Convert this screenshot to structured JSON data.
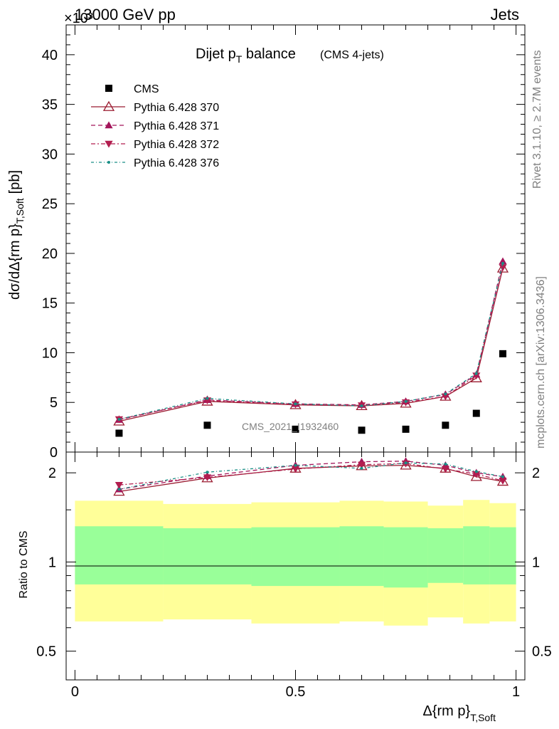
{
  "header": {
    "energy": "13000 GeV pp",
    "category": "Jets",
    "exponent": "×10³",
    "side_rivet": "Rivet 3.1.10, ≥ 2.7M events",
    "side_site": "mcplots.cern.ch [arXiv:1306.3436]"
  },
  "main_panel": {
    "title_main": "Dijet p",
    "title_sub": "T",
    "title_rest": " balance",
    "title_note": "(CMS 4-jets)",
    "ylabel": "dσ/dΔ{rm p}",
    "ylabel_sub": "T,Soft",
    "ylabel_unit": "[pb]",
    "watermark": "CMS_2021_I1932460"
  },
  "ratio_panel": {
    "ylabel": "Ratio to CMS"
  },
  "xaxis": {
    "label": "Δ{rm p}",
    "label_sub": "T,Soft"
  },
  "colors": {
    "data": "#000000",
    "s370": "#9b1c31",
    "s371": "#a3155a",
    "s372": "#b21e4f",
    "s376": "#1a8f86",
    "band_inner": "#99ff99",
    "band_outer": "#ffff99"
  },
  "chart_data": [
    {
      "type": "scatter",
      "xlim": [
        -0.02,
        1.02
      ],
      "ylim": [
        0,
        43
      ],
      "yscale": "linear",
      "yunit_multiplier": 1000,
      "yticks": [
        0,
        5,
        10,
        15,
        20,
        25,
        30,
        35,
        40
      ],
      "xticks": [
        0,
        0.5,
        1
      ],
      "x": [
        0.1,
        0.3,
        0.5,
        0.65,
        0.75,
        0.84,
        0.91,
        0.97
      ],
      "series": [
        {
          "name": "CMS",
          "style": "data",
          "values": [
            1.9,
            2.7,
            2.3,
            2.2,
            2.3,
            2.7,
            3.9,
            9.9
          ]
        },
        {
          "name": "Pythia 6.428 370",
          "style": "s370",
          "values": [
            3.1,
            5.1,
            4.75,
            4.65,
            4.9,
            5.6,
            7.45,
            18.5
          ]
        },
        {
          "name": "Pythia 6.428 371",
          "style": "s371",
          "values": [
            3.25,
            5.25,
            4.85,
            4.75,
            5.1,
            5.8,
            7.8,
            19.2
          ]
        },
        {
          "name": "Pythia 6.428 372",
          "style": "s372",
          "values": [
            3.3,
            5.2,
            4.8,
            4.7,
            5.0,
            5.6,
            7.7,
            18.6
          ]
        },
        {
          "name": "Pythia 6.428 376",
          "style": "s376",
          "values": [
            3.3,
            5.4,
            4.85,
            4.65,
            5.1,
            5.85,
            7.9,
            19.0
          ]
        }
      ]
    },
    {
      "type": "line",
      "ylim": [
        0.4,
        2.35
      ],
      "yscale": "log",
      "yticks": [
        0.5,
        1,
        2
      ],
      "xticks": [
        0,
        0.5,
        1
      ],
      "x": [
        0.1,
        0.3,
        0.5,
        0.65,
        0.75,
        0.84,
        0.91,
        0.97
      ],
      "bin_edges": [
        0,
        0.2,
        0.4,
        0.6,
        0.7,
        0.8,
        0.88,
        0.94,
        1.0
      ],
      "band_inner": [
        [
          0.84,
          1.32
        ],
        [
          0.84,
          1.3
        ],
        [
          0.83,
          1.31
        ],
        [
          0.83,
          1.32
        ],
        [
          0.82,
          1.31
        ],
        [
          0.85,
          1.3
        ],
        [
          0.84,
          1.32
        ],
        [
          0.84,
          1.31
        ]
      ],
      "band_outer": [
        [
          0.63,
          1.61
        ],
        [
          0.64,
          1.57
        ],
        [
          0.62,
          1.59
        ],
        [
          0.63,
          1.61
        ],
        [
          0.61,
          1.6
        ],
        [
          0.65,
          1.55
        ],
        [
          0.62,
          1.62
        ],
        [
          0.63,
          1.58
        ]
      ],
      "series": [
        {
          "name": "Pythia 6.428 370",
          "style": "s370",
          "values": [
            1.73,
            1.92,
            2.07,
            2.11,
            2.12,
            2.07,
            1.94,
            1.87
          ]
        },
        {
          "name": "Pythia 6.428 371",
          "style": "s371",
          "values": [
            1.76,
            1.95,
            2.12,
            2.18,
            2.19,
            2.12,
            2.0,
            1.94
          ]
        },
        {
          "name": "Pythia 6.428 372",
          "style": "s372",
          "values": [
            1.82,
            1.93,
            2.06,
            2.13,
            2.15,
            2.06,
            1.98,
            1.88
          ]
        },
        {
          "name": "Pythia 6.428 376",
          "style": "s376",
          "values": [
            1.76,
            2.01,
            2.12,
            2.07,
            2.16,
            2.14,
            2.02,
            1.94
          ]
        }
      ]
    }
  ]
}
